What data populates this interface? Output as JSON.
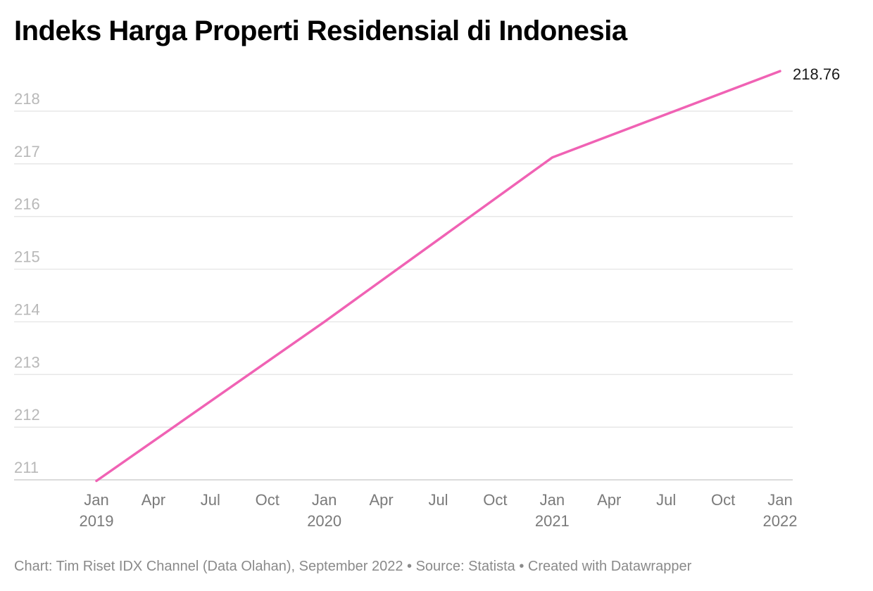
{
  "title": "Indeks Harga Properti Residensial di Indonesia",
  "footer": "Chart: Tim Riset IDX Channel (Data Olahan), September 2022 • Source: Statista • Created with Datawrapper",
  "colors": {
    "line": "#f062b4",
    "grid": "#e2e2e2"
  },
  "chart_data": {
    "type": "line",
    "title": "Indeks Harga Properti Residensial di Indonesia",
    "xlabel": "",
    "ylabel": "",
    "x": [
      "2019-01",
      "2020-01",
      "2021-01",
      "2022-01"
    ],
    "series": [
      {
        "values": [
          210.98,
          214.0,
          217.12,
          218.76
        ]
      }
    ],
    "end_label": "218.76",
    "ylim": [
      211,
      218
    ],
    "y_ticks": [
      "218",
      "217",
      "216",
      "215",
      "214",
      "213",
      "212",
      "211"
    ],
    "x_ticks": [
      {
        "top": "Jan",
        "bottom": "2019"
      },
      {
        "top": "Apr",
        "bottom": ""
      },
      {
        "top": "Jul",
        "bottom": ""
      },
      {
        "top": "Oct",
        "bottom": ""
      },
      {
        "top": "Jan",
        "bottom": "2020"
      },
      {
        "top": "Apr",
        "bottom": ""
      },
      {
        "top": "Jul",
        "bottom": ""
      },
      {
        "top": "Oct",
        "bottom": ""
      },
      {
        "top": "Jan",
        "bottom": "2021"
      },
      {
        "top": "Apr",
        "bottom": ""
      },
      {
        "top": "Jul",
        "bottom": ""
      },
      {
        "top": "Oct",
        "bottom": ""
      },
      {
        "top": "Jan",
        "bottom": "2022"
      }
    ],
    "grid": true,
    "legend": "none"
  }
}
